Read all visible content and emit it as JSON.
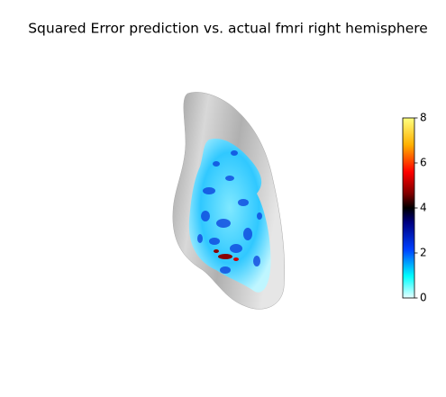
{
  "chart_data": {
    "type": "surface",
    "title": "Squared Error prediction vs. actual fmri right hemisphere",
    "colorbar": {
      "clim": [
        0,
        8
      ],
      "ticks": [
        0,
        2,
        4,
        6,
        8
      ]
    }
  }
}
